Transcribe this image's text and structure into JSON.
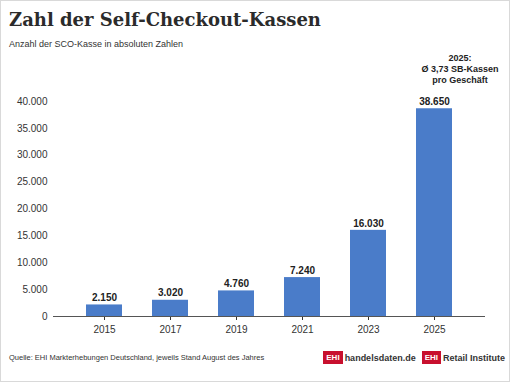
{
  "chart_data": {
    "type": "bar",
    "title": "Zahl der Self-Checkout-Kassen",
    "subtitle": "Anzahl der SCO-Kasse in absoluten Zahlen",
    "annotation": [
      "2025:",
      "Ø 3,73 SB-Kassen",
      "pro Geschäft"
    ],
    "categories": [
      "2015",
      "2017",
      "2019",
      "2021",
      "2023",
      "2025"
    ],
    "values": [
      2150,
      3020,
      4760,
      7240,
      16030,
      38650
    ],
    "value_labels": [
      "2.150",
      "3.020",
      "4.760",
      "7.240",
      "16.030",
      "38.650"
    ],
    "color": "#4a7cc9",
    "ylim": [
      0,
      40000
    ],
    "yticks": [
      0,
      {
        "value": 5000,
        "label": "5.000"
      },
      {
        "value": 10000,
        "label": "10.000"
      },
      {
        "value": 15000,
        "label": "15.000"
      },
      {
        "value": 20000,
        "label": "20.000"
      },
      {
        "value": 25000,
        "label": "25.000"
      },
      {
        "value": 30000,
        "label": "30.000"
      },
      {
        "value": 35000,
        "label": "35.000"
      },
      {
        "value": 40000,
        "label": "40.000"
      }
    ],
    "grid": false,
    "data_labels": true,
    "source": "Quelle: EHI Markterhebungen Deutschland, jeweils Stand August des Jahres",
    "logos": [
      {
        "badge": "EHI",
        "text": "handelsdaten.de"
      },
      {
        "badge": "EHI",
        "text": "Retail Institute"
      }
    ]
  }
}
